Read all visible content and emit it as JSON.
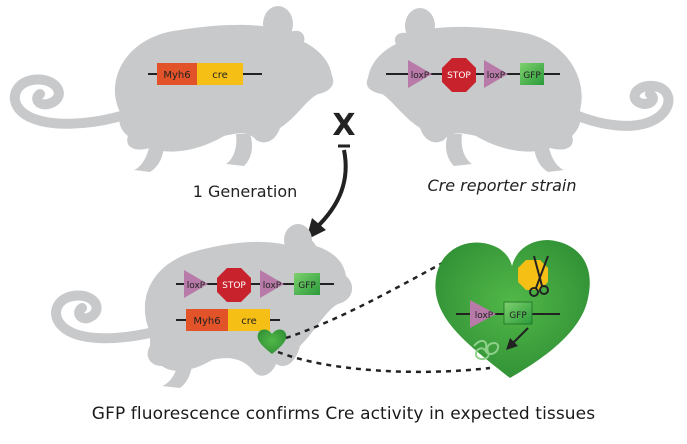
{
  "parent_left": {
    "gene1": "Myh6",
    "gene2": "cre"
  },
  "parent_right": {
    "loxp1": "loxP",
    "stop": "STOP",
    "loxp2": "loxP",
    "gfp": "GFP"
  },
  "cross_symbol": "X",
  "generation_label": "1 Generation",
  "reporter_label": "Cre reporter strain",
  "offspring": {
    "reporter": {
      "loxp1": "loxP",
      "stop": "STOP",
      "loxp2": "loxP",
      "gfp": "GFP"
    },
    "driver": {
      "gene1": "Myh6",
      "gene2": "cre"
    }
  },
  "heart_inset": {
    "loxp": "loxP",
    "gfp": "GFP"
  },
  "caption": "GFP fluorescence confirms Cre activity in expected tissues",
  "colors": {
    "mouse": "#c8c9cb",
    "myh6": "#e2532a",
    "cre": "#f5bf16",
    "loxp": "#b87aa8",
    "stop": "#c8232c",
    "gfp": "#3cae49",
    "heart": "#3aa23f"
  }
}
